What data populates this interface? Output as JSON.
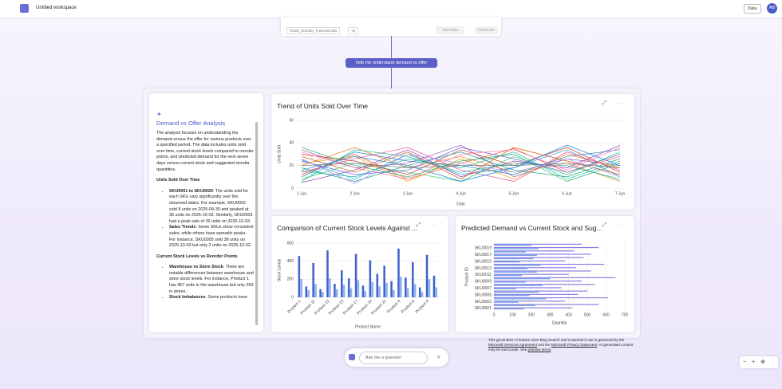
{
  "header": {
    "title": "Untitled workspace",
    "data_button": "Data",
    "avatar": "AB"
  },
  "prompt_card": {
    "file": "Retail_Reorder_Forecast.xlsx",
    "more": "+2",
    "add_data": "Add data",
    "generate": "Generate"
  },
  "prompt_chip": "help me understand demand vs offer",
  "analysis": {
    "title": "Demand vs Offer Analysis",
    "intro": "The analysis focuses on understanding the demand versus the offer for various products over a specified period. The data includes units sold over time, current stock levels compared to reorder points, and predicted demand for the next seven days versus current stock and suggested reorder quantities.",
    "sections": [
      {
        "heading": "Units Sold Over Time",
        "bullets": [
          {
            "lead": "SKU0001 to SKU0020",
            "text": ": The units sold for each SKU vary significantly over the observed dates. For example, SKU0002 sold 8 units on 2025-09-30 and peaked at 35 units on 2025-10-03. Similarly, SKU0003 had a peak sale of 39 units on 2025-10-03."
          },
          {
            "lead": "Sales Trends",
            "text": ": Some SKUs show consistent sales, while others have sporadic peaks. For instance, SKU0005 sold 38 units on 2025-10-03 but only 2 units on 2025-10-02."
          }
        ]
      },
      {
        "heading": "Current Stock Levels vs Reorder Points",
        "bullets": [
          {
            "lead": "Warehouse vs Store Stock",
            "text": ": There are notable differences between warehouse and store stock levels. For instance, Product 1 has 457 units in the warehouse but only 203 in stores."
          },
          {
            "lead": "Stock Imbalances",
            "text": ": Some products have"
          }
        ]
      }
    ]
  },
  "chart_data": [
    {
      "type": "line",
      "title": "Trend of Units Sold Over Time",
      "x_label": "Date",
      "y_label": "Units Sold",
      "categories": [
        "1 Jun",
        "2 Jun",
        "3 Jun",
        "4 Jun",
        "5 Jun",
        "6 Jun",
        "7 Jun"
      ],
      "ylim": [
        0,
        60
      ],
      "yticks": [
        0,
        20,
        40,
        60
      ],
      "grid": true,
      "series": [
        {
          "color": "#e74c3c",
          "values": [
            12,
            30,
            8,
            22,
            35,
            14,
            28
          ]
        },
        {
          "color": "#3498db",
          "values": [
            25,
            8,
            30,
            12,
            18,
            34,
            10
          ]
        },
        {
          "color": "#9b59b6",
          "values": [
            34,
            18,
            22,
            38,
            10,
            26,
            20
          ]
        },
        {
          "color": "#2ecc71",
          "values": [
            8,
            22,
            14,
            6,
            28,
            12,
            32
          ]
        },
        {
          "color": "#e67e22",
          "values": [
            20,
            36,
            18,
            28,
            14,
            22,
            6
          ]
        },
        {
          "color": "#1abc9c",
          "values": [
            15,
            10,
            26,
            18,
            32,
            8,
            24
          ]
        },
        {
          "color": "#c0392b",
          "values": [
            30,
            24,
            12,
            34,
            20,
            36,
            14
          ]
        },
        {
          "color": "#8e44ad",
          "values": [
            5,
            16,
            34,
            10,
            24,
            18,
            38
          ]
        },
        {
          "color": "#f39c12",
          "values": [
            22,
            28,
            6,
            26,
            8,
            30,
            18
          ]
        },
        {
          "color": "#16a085",
          "values": [
            18,
            6,
            20,
            32,
            16,
            10,
            26
          ]
        },
        {
          "color": "#d35400",
          "values": [
            28,
            14,
            32,
            8,
            36,
            24,
            12
          ]
        },
        {
          "color": "#2980b9",
          "values": [
            10,
            32,
            24,
            20,
            12,
            28,
            34
          ]
        },
        {
          "color": "#27ae60",
          "values": [
            36,
            20,
            10,
            24,
            30,
            6,
            22
          ]
        },
        {
          "color": "#e84393",
          "values": [
            14,
            26,
            36,
            16,
            6,
            32,
            16
          ]
        },
        {
          "color": "#6c5ce7",
          "values": [
            24,
            12,
            16,
            36,
            26,
            14,
            30
          ]
        },
        {
          "color": "#00b894",
          "values": [
            6,
            34,
            28,
            14,
            22,
            20,
            8
          ]
        },
        {
          "color": "#fd79a8",
          "values": [
            32,
            18,
            8,
            30,
            34,
            16,
            36
          ]
        },
        {
          "color": "#0984e3",
          "values": [
            16,
            28,
            20,
            6,
            18,
            38,
            20
          ]
        },
        {
          "color": "#a29bfe",
          "values": [
            26,
            4,
            30,
            22,
            14,
            26,
            10
          ]
        },
        {
          "color": "#636e72",
          "values": [
            20,
            22,
            18,
            20,
            20,
            22,
            18
          ]
        }
      ]
    },
    {
      "type": "bar",
      "title": "Comparison of Current Stock Levels Against ...",
      "x_label": "Product Name",
      "y_label": "Stock Levels",
      "categories": [
        "Product 1",
        null,
        "Product 11",
        null,
        "Product 13",
        null,
        "Product 15",
        null,
        "Product 17",
        null,
        "Product 19",
        null,
        "Product 20",
        null,
        "Product 4",
        null,
        "Product 6",
        null,
        "Product 8",
        null
      ],
      "ylim": [
        0,
        600
      ],
      "yticks": [
        0,
        200,
        400,
        600
      ],
      "grid": true,
      "series": [
        {
          "color": "#3f63d0",
          "values": [
            457,
            120,
            380,
            90,
            520,
            150,
            300,
            210,
            480,
            130,
            410,
            260,
            350,
            180,
            540,
            220,
            390,
            110,
            470,
            240
          ]
        },
        {
          "color": "#8fb2ec",
          "values": [
            203,
            80,
            150,
            60,
            210,
            90,
            140,
            100,
            190,
            70,
            170,
            120,
            160,
            80,
            230,
            100,
            150,
            60,
            200,
            110
          ]
        }
      ]
    },
    {
      "type": "hbar",
      "title": "Predicted Demand vs Current Stock and Sug...",
      "x_label": "Quantity",
      "y_label": "Product ID",
      "categories": [
        "SKU0001",
        null,
        "SKU0003",
        null,
        "SKU0005",
        null,
        "SKU0007",
        null,
        "SKU0009",
        null,
        "SKU0011",
        null,
        "SKU0013",
        null,
        "SKU0015",
        null,
        "SKU0017",
        null,
        "SKU0019",
        null
      ],
      "xlim": [
        0,
        700
      ],
      "xticks": [
        0,
        100,
        200,
        300,
        400,
        500,
        600,
        700
      ],
      "grid": true,
      "series": [
        {
          "color": "#8a7fe0",
          "values": [
            420,
            560,
            380,
            610,
            450,
            500,
            360,
            540,
            470,
            650,
            400,
            520,
            440,
            590,
            380,
            480,
            520,
            430,
            560,
            470
          ]
        },
        {
          "color": "#6d9be8",
          "values": [
            160,
            220,
            130,
            280,
            190,
            240,
            120,
            260,
            170,
            300,
            150,
            230,
            180,
            250,
            140,
            210,
            230,
            170,
            240,
            200
          ]
        }
      ]
    }
  ],
  "disclaimer": {
    "t1": "This generative AI feature uses Bing Search and Customer's use is governed by the ",
    "l1": "Microsoft Services Agreement",
    "t2": " and the ",
    "l2": "Microsoft Privacy Statement",
    "t3": ". AI-generated content may be inaccurate. See ",
    "l3": "preview terms",
    "t4": "."
  },
  "ask": "Ask me a question"
}
